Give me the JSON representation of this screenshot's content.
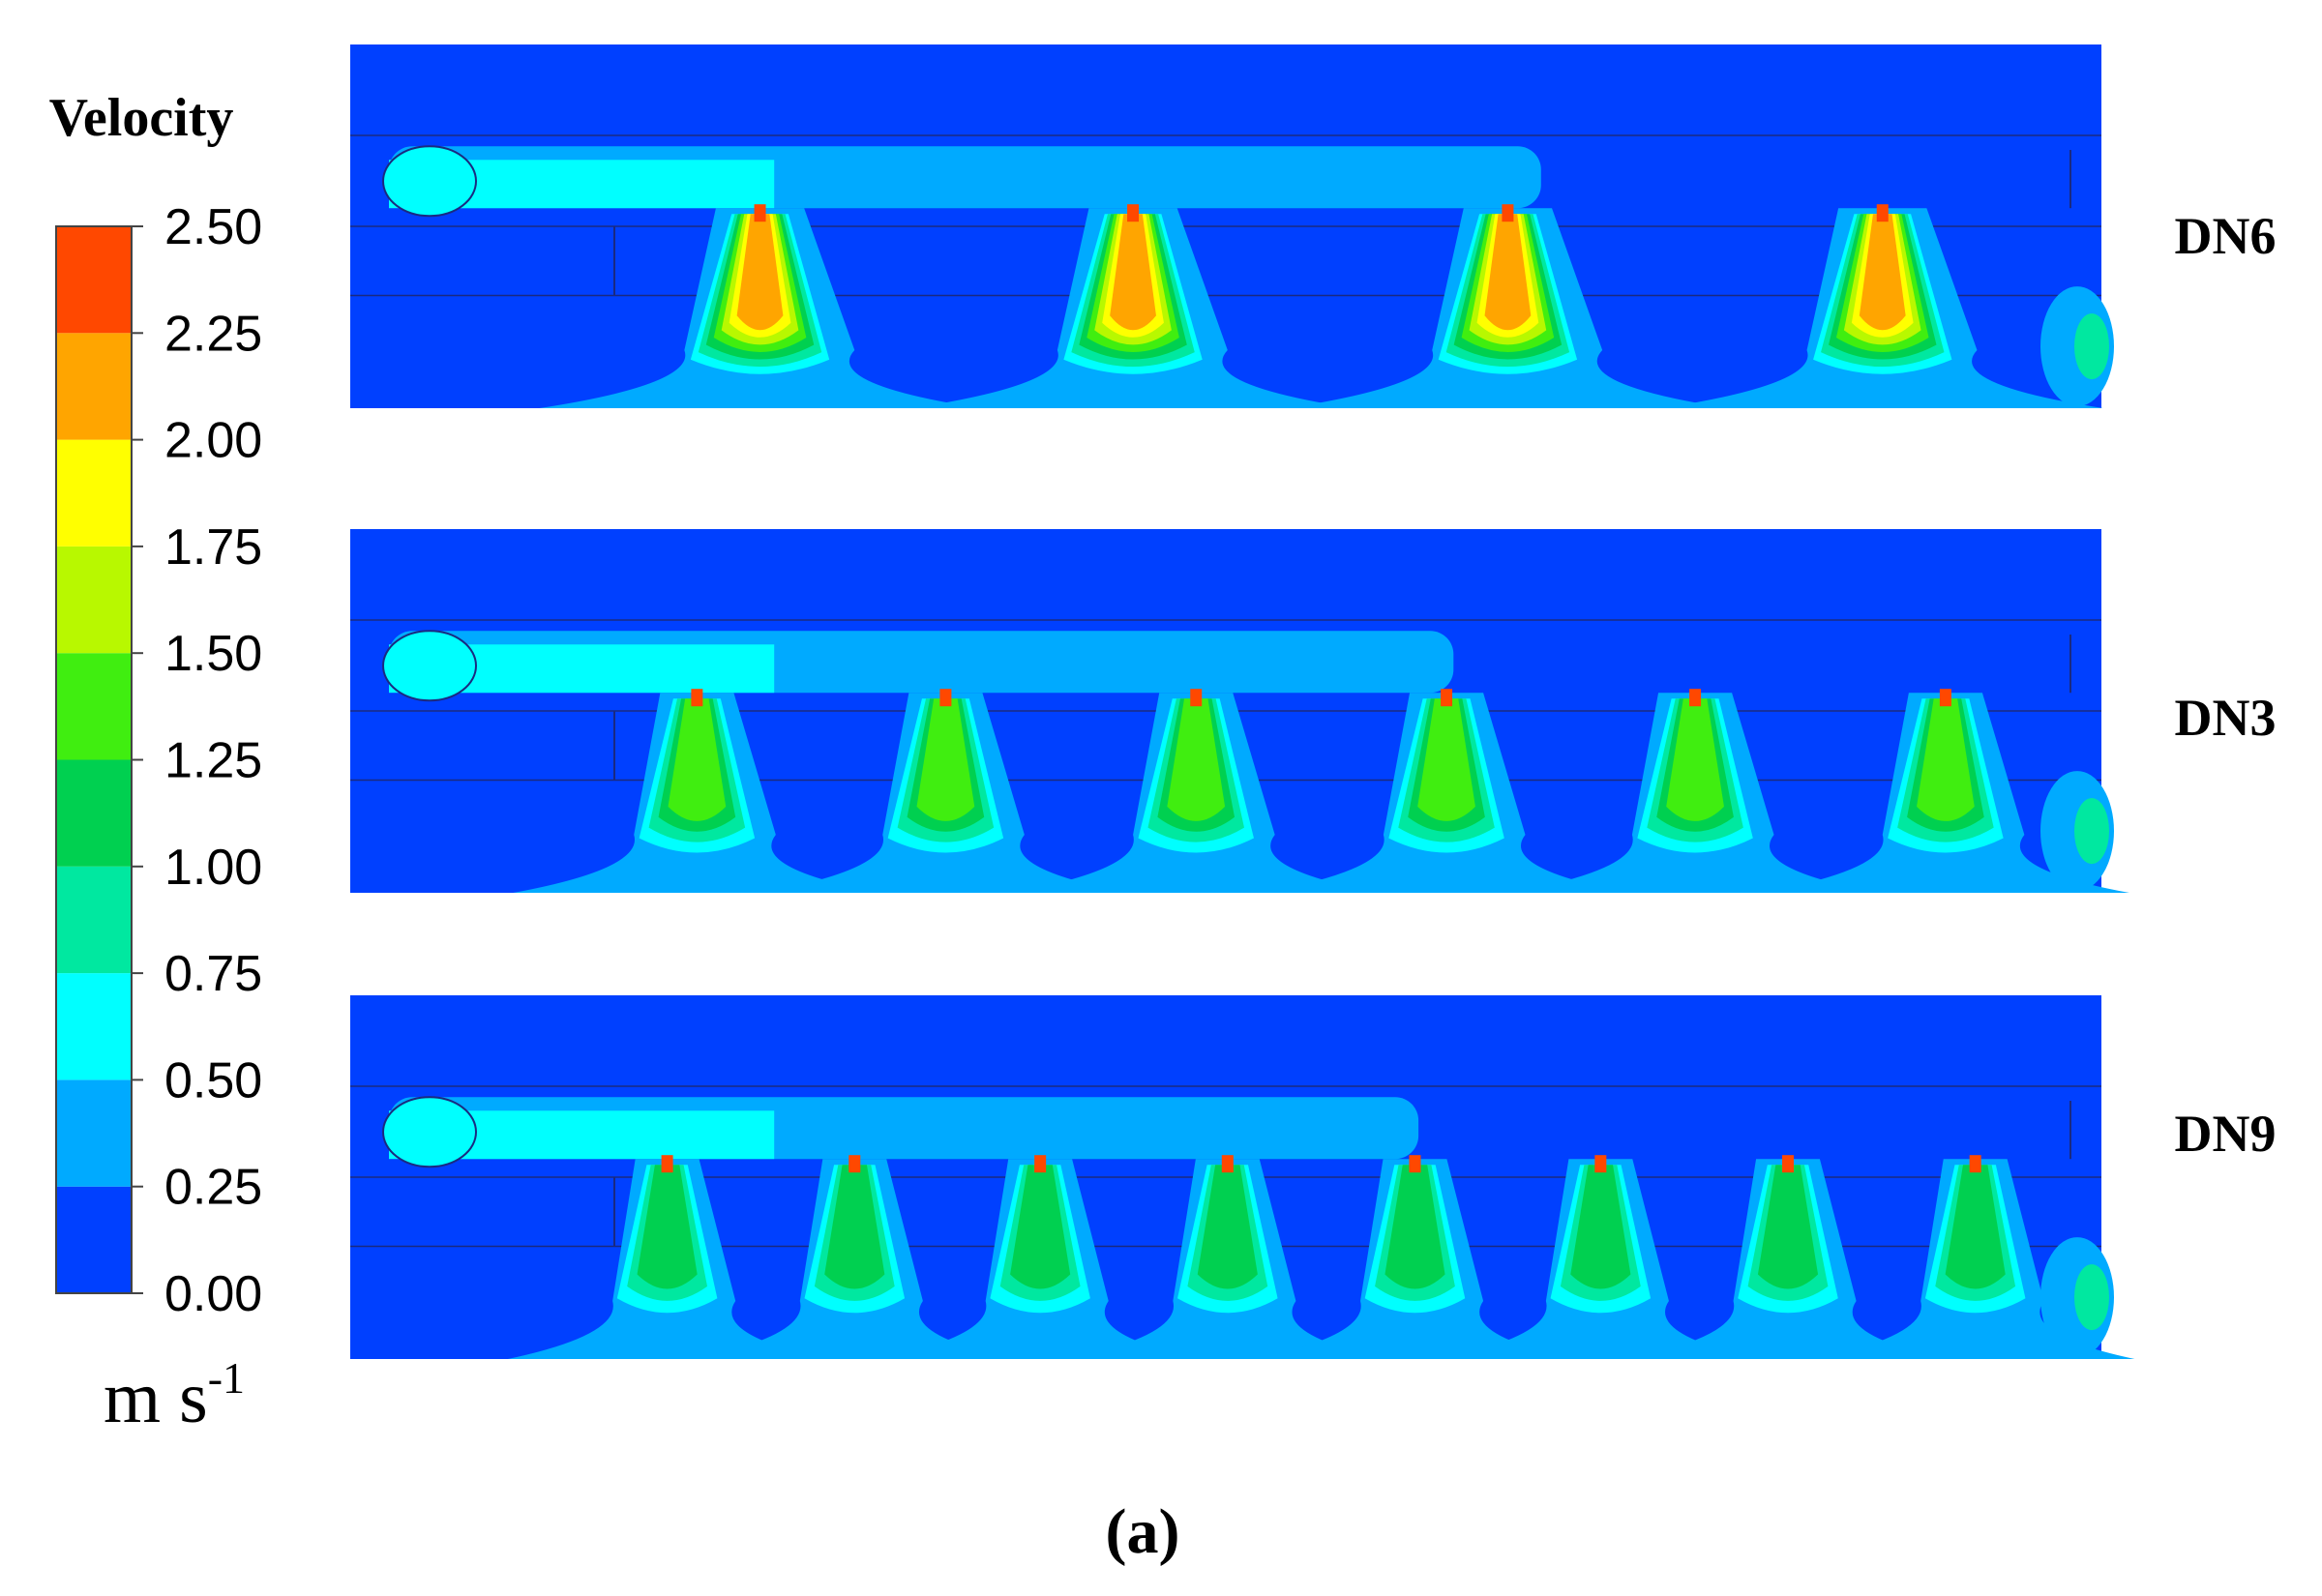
{
  "colorbar": {
    "title": "Velocity",
    "unit": "m s",
    "unit_superscript": "-1",
    "ticks": [
      {
        "value": 0,
        "label": "0.00"
      },
      {
        "value": 0.25,
        "label": "0.25"
      },
      {
        "value": 0.5,
        "label": "0.50"
      },
      {
        "value": 0.75,
        "label": "0.75"
      },
      {
        "value": 1,
        "label": "1.00"
      },
      {
        "value": 1.25,
        "label": "1.25"
      },
      {
        "value": 1.5,
        "label": "1.50"
      },
      {
        "value": 1.75,
        "label": "1.75"
      },
      {
        "value": 2,
        "label": "2.00"
      },
      {
        "value": 2.25,
        "label": "2.25"
      },
      {
        "value": 2.5,
        "label": "2.50"
      }
    ],
    "band_colors": [
      "#0040ff",
      "#00aaff",
      "#00ffff",
      "#00e8a0",
      "#00d050",
      "#40ee10",
      "#b8f800",
      "#ffff00",
      "#ffa500",
      "#ff4800"
    ]
  },
  "panels": [
    {
      "label": "DN6"
    },
    {
      "label": "DN3"
    },
    {
      "label": "DN9"
    }
  ],
  "caption": "(a)"
}
